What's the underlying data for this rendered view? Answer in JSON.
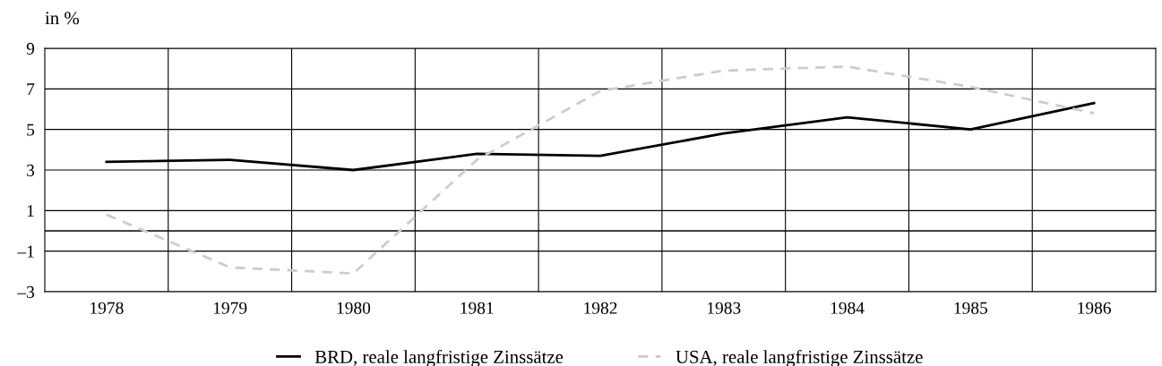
{
  "chart_data": {
    "type": "line",
    "ylabel": "in %",
    "categories": [
      "1978",
      "1979",
      "1980",
      "1981",
      "1982",
      "1983",
      "1984",
      "1985",
      "1986"
    ],
    "series": [
      {
        "name": "BRD, reale langfristige Zinssätze",
        "color": "#000000",
        "line_style": "solid",
        "values": [
          3.4,
          3.5,
          3.0,
          3.8,
          3.7,
          4.8,
          5.6,
          5.0,
          6.3
        ]
      },
      {
        "name": "USA, reale langfristige Zinssätze",
        "color": "#cccccc",
        "line_style": "dashed",
        "values": [
          0.8,
          -1.8,
          -2.1,
          3.5,
          6.9,
          7.9,
          8.1,
          7.1,
          5.8
        ]
      }
    ],
    "ylim": [
      -3,
      9
    ],
    "yticks": [
      {
        "value": -3,
        "label": "–3"
      },
      {
        "value": -1,
        "label": "–1"
      },
      1,
      3,
      5,
      7,
      9
    ],
    "ref_lines": [
      {
        "axis": "y",
        "value": 0,
        "color": "#000000"
      }
    ],
    "grid": true,
    "legend": "bottom",
    "marker": "none"
  }
}
